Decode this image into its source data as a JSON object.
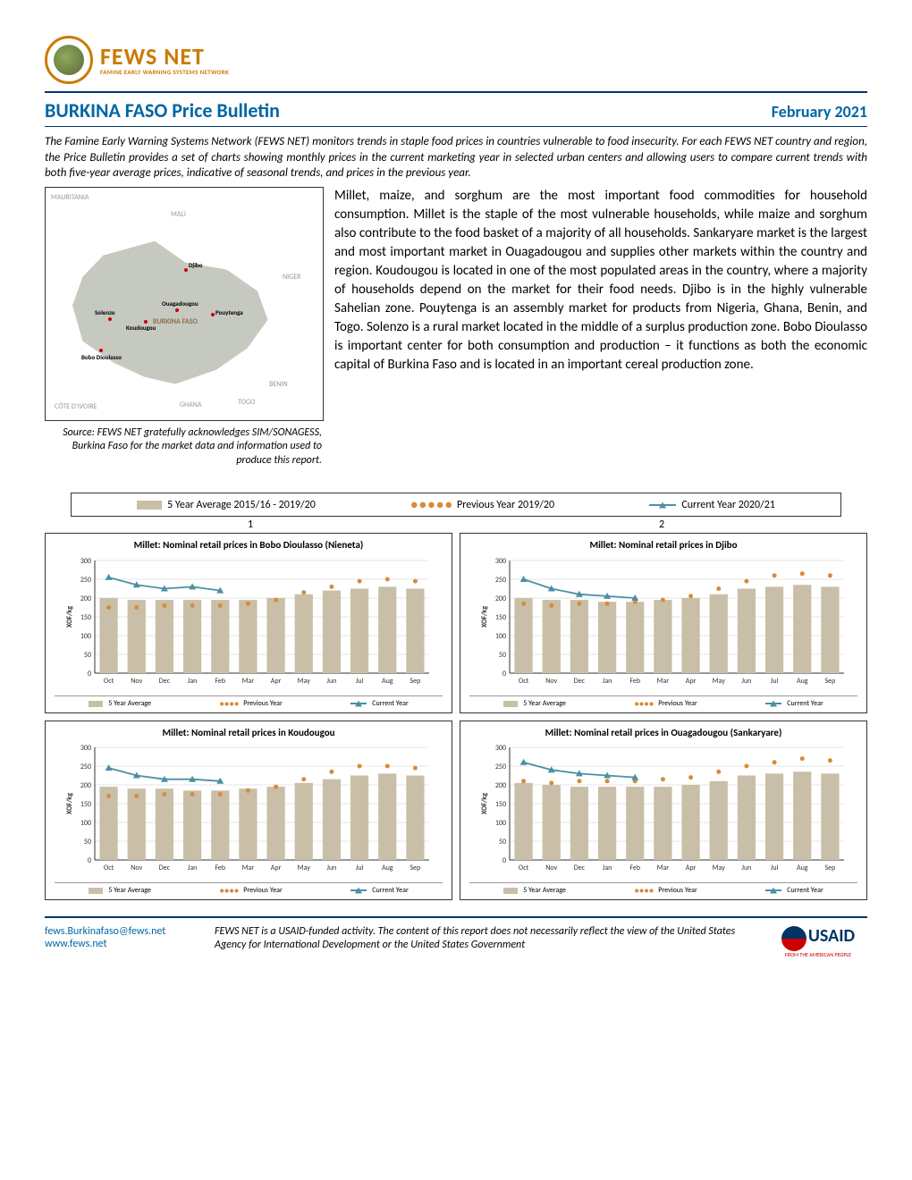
{
  "logo": {
    "main": "FEWS NET",
    "sub": "FAMINE EARLY WARNING SYSTEMS NETWORK"
  },
  "header": {
    "title": "BURKINA FASO Price Bulletin",
    "date": "February 2021"
  },
  "intro": "The Famine Early Warning Systems Network (FEWS NET) monitors trends in staple food prices in countries vulnerable to food insecurity. For each FEWS NET country and region, the Price Bulletin provides a set of charts showing monthly prices in the current marketing year in selected urban centers and allowing users to compare current trends with both five-year average prices, indicative of seasonal trends, and prices in the previous year.",
  "body": "Millet, maize, and sorghum are the most important food commodities for household consumption. Millet is the staple of the most vulnerable households, while maize and sorghum also contribute to the food basket of a majority of all households. Sankaryare market is the largest and most important market in Ouagadougou and supplies other markets within the country and region. Koudougou is located in one of the most populated areas in the country, where a majority of households depend on the market for their food needs. Djibo is in the highly vulnerable Sahelian zone. Pouytenga is an assembly market for products from Nigeria, Ghana, Benin, and Togo. Solenzo is a rural market located in the middle of a surplus production zone. Bobo Dioulasso is important center for both consumption and production – it functions as both the economic capital of Burkina Faso and is located in an important cereal production zone.",
  "map": {
    "neighbors": {
      "mauritania": "MAURITANIA",
      "mali": "MALI",
      "niger": "NIGER",
      "benin": "BENIN",
      "togo": "TOGO",
      "ghana": "GHANA",
      "cotedivoire": "CÔTE D'IVOIRE"
    },
    "country_label": "BURKINA FASO",
    "cities": {
      "djibo": "Djibo",
      "ouagadougou": "Ouagadougou",
      "pouytenga": "Pouytenga",
      "solenzo": "Solenzo",
      "koudougou": "Koudougou",
      "bobo": "Bobo Dioulasso"
    }
  },
  "source": "Source: FEWS NET gratefully acknowledges SIM/SONAGESS, Burkina Faso for the market data and information used to produce this report.",
  "legend": {
    "avg": "5 Year Average 2015/16 - 2019/20",
    "prev": "Previous Year 2019/20",
    "curr": "Current Year 2020/21",
    "avg_short": "5 Year Average",
    "prev_short": "Previous Year",
    "curr_short": "Current Year"
  },
  "panel_nums": {
    "p1": "1",
    "p2": "2"
  },
  "chart_common": {
    "months": [
      "Oct",
      "Nov",
      "Dec",
      "Jan",
      "Feb",
      "Mar",
      "Apr",
      "May",
      "Jun",
      "Jul",
      "Aug",
      "Sep"
    ],
    "ylabel": "XOF/kg",
    "ylim": [
      0,
      300
    ],
    "ytick_step": 50,
    "bar_color": "#c9bfa8",
    "prev_color": "#d88a3a",
    "curr_color": "#4a90a4",
    "grid_color": "#cccccc",
    "axis_color": "#333333",
    "label_fontsize": 8,
    "title_fontsize": 11,
    "bar_width": 0.65
  },
  "charts": [
    {
      "title": "Millet: Nominal retail prices in Bobo Dioulasso (Nieneta)",
      "avg": [
        200,
        195,
        195,
        195,
        195,
        195,
        200,
        210,
        220,
        225,
        230,
        225
      ],
      "prev": [
        175,
        175,
        180,
        180,
        180,
        185,
        195,
        215,
        230,
        245,
        250,
        245
      ],
      "curr": [
        255,
        235,
        225,
        230,
        220
      ]
    },
    {
      "title": "Millet: Nominal retail prices in Djibo",
      "avg": [
        200,
        195,
        195,
        190,
        190,
        195,
        200,
        210,
        225,
        230,
        235,
        230
      ],
      "prev": [
        185,
        180,
        185,
        185,
        190,
        195,
        205,
        225,
        245,
        260,
        265,
        260
      ],
      "curr": [
        250,
        225,
        210,
        205,
        200
      ]
    },
    {
      "title": "Millet: Nominal retail prices in Koudougou",
      "avg": [
        195,
        190,
        190,
        185,
        185,
        190,
        195,
        205,
        215,
        225,
        230,
        225
      ],
      "prev": [
        170,
        170,
        175,
        175,
        175,
        185,
        195,
        215,
        235,
        250,
        250,
        245
      ],
      "curr": [
        245,
        225,
        215,
        215,
        210
      ]
    },
    {
      "title": "Millet: Nominal retail prices in Ouagadougou (Sankaryare)",
      "avg": [
        205,
        200,
        195,
        195,
        195,
        195,
        200,
        210,
        225,
        230,
        235,
        230
      ],
      "prev": [
        210,
        205,
        210,
        210,
        210,
        215,
        220,
        235,
        250,
        260,
        270,
        265
      ],
      "curr": [
        260,
        240,
        230,
        225,
        220
      ]
    }
  ],
  "footer": {
    "email": "fews.Burkinafaso@fews.net",
    "url": "www.fews.net",
    "disclaimer": "FEWS NET is a USAID-funded activity. The content of this report does not necessarily reflect the view of the United States Agency for International Development or the United States Government",
    "usaid": "USAID",
    "usaid_sub": "FROM THE AMERICAN PEOPLE"
  }
}
